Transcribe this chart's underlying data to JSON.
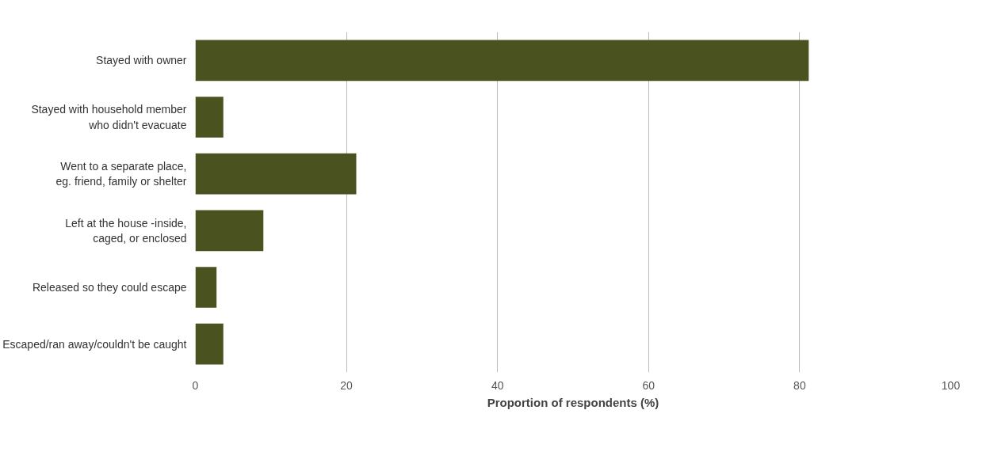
{
  "chart_data": {
    "type": "bar",
    "orientation": "horizontal",
    "xlabel": "Proportion of respondents (%)",
    "categories": [
      "Stayed with owner",
      "Stayed with household member\nwho didn't evacuate",
      "Went to a separate place,\neg. friend, family or shelter",
      "Left at the house -inside,\ncaged, or enclosed",
      "Released so they could escape",
      "Escaped/ran away/couldn't be caught"
    ],
    "values": [
      81.2,
      3.7,
      21.3,
      9.0,
      2.8,
      3.7
    ],
    "color": "#4a5320",
    "xlim": [
      0,
      100
    ],
    "xticks": [
      0,
      20,
      40,
      60,
      80,
      100
    ],
    "grid": "x"
  }
}
